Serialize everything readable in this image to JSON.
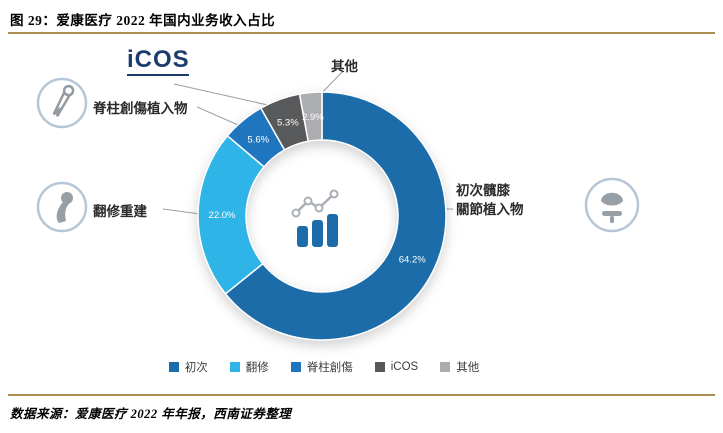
{
  "page": {
    "title": "图 29：爱康医疗 2022 年国内业务收入占比",
    "source": "数据来源：爱康医疗 2022 年年报，西南证券整理"
  },
  "logo": {
    "text": "iCOS"
  },
  "callouts": {
    "spine_label": "脊柱創傷植入物",
    "revision_label": "翻修重建",
    "other_label": "其他",
    "primary_label_line1": "初次髖膝",
    "primary_label_line2": "關節植入物"
  },
  "chart_data": {
    "type": "pie",
    "subtype": "donut",
    "title": "爱康医疗 2022 年国内业务收入占比",
    "categories": [
      "初次",
      "翻修",
      "脊柱創傷",
      "iCOS",
      "其他"
    ],
    "values": [
      64.2,
      22.0,
      5.6,
      5.3,
      2.9
    ],
    "value_labels": [
      "64.2%",
      "22.0%",
      "5.6%",
      "5.3%",
      "2.9%"
    ],
    "colors": [
      "#1B6CA8",
      "#2FB4E7",
      "#2076BE",
      "#58595B",
      "#ABADB0"
    ],
    "unit": "%",
    "start_angle_deg": 0,
    "direction": "clockwise",
    "legend_position": "bottom"
  },
  "theme": {
    "accent_rule": "#AA8C4F",
    "logo_blue": "#1B3D6E",
    "connector_gray": "#9AA0A6"
  }
}
